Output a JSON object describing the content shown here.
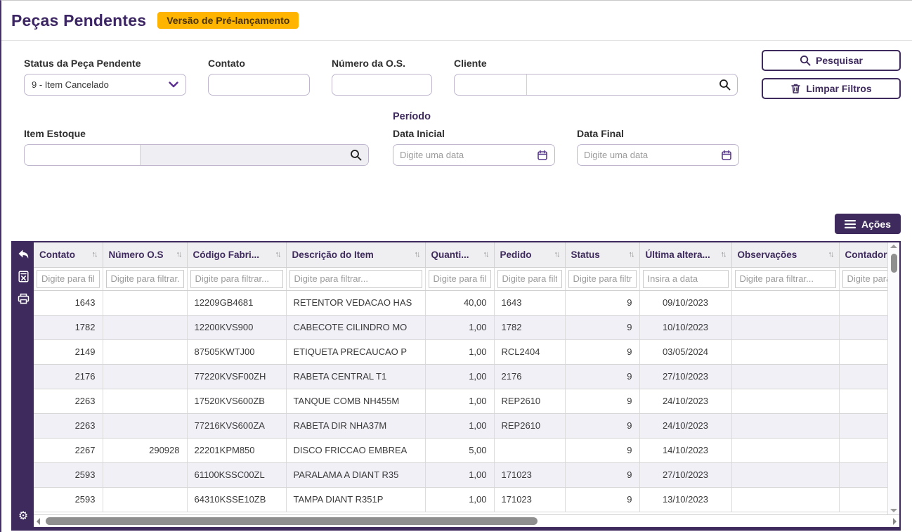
{
  "page": {
    "title": "Peças Pendentes",
    "badge": "Versão de Pré-lançamento"
  },
  "filters": {
    "status": {
      "label": "Status da Peça Pendente",
      "value": "9 - Item Cancelado"
    },
    "contato": {
      "label": "Contato",
      "value": ""
    },
    "numero_os": {
      "label": "Número da O.S.",
      "value": ""
    },
    "cliente": {
      "label": "Cliente",
      "code_value": "",
      "name_value": ""
    },
    "item_estoque": {
      "label": "Item Estoque",
      "code_value": "",
      "name_value": ""
    },
    "periodo": {
      "label": "Período"
    },
    "data_inicial": {
      "label": "Data Inicial",
      "placeholder": "Digite uma data"
    },
    "data_final": {
      "label": "Data Final",
      "placeholder": "Digite uma data"
    },
    "buttons": {
      "pesquisar": "Pesquisar",
      "limpar": "Limpar Filtros"
    }
  },
  "actions": {
    "label": "Ações"
  },
  "table": {
    "columns": [
      {
        "key": "contato",
        "label": "Contato",
        "filter_placeholder": "Digite para filtrar...",
        "width": 98,
        "align": "right",
        "sortable": true
      },
      {
        "key": "numero_os",
        "label": "Número O.S",
        "filter_placeholder": "Digite para filtrar...",
        "width": 120,
        "align": "right",
        "sortable": true
      },
      {
        "key": "codigo",
        "label": "Código Fabri...",
        "filter_placeholder": "Digite para filtrar...",
        "width": 141,
        "align": "left",
        "sortable": true
      },
      {
        "key": "descricao",
        "label": "Descrição do Item",
        "filter_placeholder": "Digite para filtrar...",
        "width": 198,
        "align": "left",
        "sortable": true
      },
      {
        "key": "quantidade",
        "label": "Quanti...",
        "filter_placeholder": "Digite para filtrar...",
        "width": 98,
        "align": "right",
        "sortable": true
      },
      {
        "key": "pedido",
        "label": "Pedido",
        "filter_placeholder": "Digite para filtrar...",
        "width": 101,
        "align": "left",
        "sortable": true
      },
      {
        "key": "status",
        "label": "Status",
        "filter_placeholder": "Digite para filtrar...",
        "width": 106,
        "align": "right",
        "sortable": true
      },
      {
        "key": "ultima",
        "label": "Última altera...",
        "filter_placeholder": "Insira a data",
        "width": 131,
        "align": "center",
        "sortable": true
      },
      {
        "key": "observacoes",
        "label": "Observações",
        "filter_placeholder": "Digite para filtrar...",
        "width": 153,
        "align": "left",
        "sortable": true
      },
      {
        "key": "contador",
        "label": "Contador",
        "filter_placeholder": "Digite para filtrar...",
        "width": 90,
        "align": "left",
        "sortable": false
      }
    ],
    "rows": [
      {
        "contato": "1643",
        "numero_os": "",
        "codigo": "12209GB4681",
        "descricao": "RETENTOR VEDACAO HAS",
        "quantidade": "40,00",
        "pedido": "1643",
        "status": "9",
        "ultima": "09/10/2023",
        "observacoes": "",
        "contador": ""
      },
      {
        "contato": "1782",
        "numero_os": "",
        "codigo": "12200KVS900",
        "descricao": "CABECOTE CILINDRO MO",
        "quantidade": "1,00",
        "pedido": "1782",
        "status": "9",
        "ultima": "10/10/2023",
        "observacoes": "",
        "contador": ""
      },
      {
        "contato": "2149",
        "numero_os": "",
        "codigo": "87505KWTJ00",
        "descricao": "ETIQUETA PRECAUCAO P",
        "quantidade": "1,00",
        "pedido": "RCL2404",
        "status": "9",
        "ultima": "03/05/2024",
        "observacoes": "",
        "contador": ""
      },
      {
        "contato": "2176",
        "numero_os": "",
        "codigo": "77220KVSF00ZH",
        "descricao": "RABETA CENTRAL T1",
        "quantidade": "1,00",
        "pedido": "2176",
        "status": "9",
        "ultima": "27/10/2023",
        "observacoes": "",
        "contador": ""
      },
      {
        "contato": "2263",
        "numero_os": "",
        "codigo": "17520KVS600ZB",
        "descricao": "TANQUE COMB NH455M",
        "quantidade": "1,00",
        "pedido": "REP2610",
        "status": "9",
        "ultima": "24/10/2023",
        "observacoes": "",
        "contador": ""
      },
      {
        "contato": "2263",
        "numero_os": "",
        "codigo": "77216KVS600ZA",
        "descricao": "RABETA DIR NHA37M",
        "quantidade": "1,00",
        "pedido": "REP2610",
        "status": "9",
        "ultima": "24/10/2023",
        "observacoes": "",
        "contador": ""
      },
      {
        "contato": "2267",
        "numero_os": "290928",
        "codigo": "22201KPM850",
        "descricao": "DISCO FRICCAO EMBREA",
        "quantidade": "5,00",
        "pedido": "",
        "status": "9",
        "ultima": "14/10/2023",
        "observacoes": "",
        "contador": ""
      },
      {
        "contato": "2593",
        "numero_os": "",
        "codigo": "61100KSSC00ZL",
        "descricao": "PARALAMA A DIANT R35",
        "quantidade": "1,00",
        "pedido": "171023",
        "status": "9",
        "ultima": "27/10/2023",
        "observacoes": "",
        "contador": ""
      },
      {
        "contato": "2593",
        "numero_os": "",
        "codigo": "64310KSSE10ZB",
        "descricao": "TAMPA DIANT R351P",
        "quantidade": "1,00",
        "pedido": "171023",
        "status": "9",
        "ultima": "13/10/2023",
        "observacoes": "",
        "contador": ""
      }
    ],
    "sort_icon": "↑↓"
  },
  "colors": {
    "primary_purple": "#3e2a5c",
    "title_purple": "#3c2563",
    "badge_bg": "#ffb400",
    "badge_text": "#4a3406",
    "header_bg": "#efeff1",
    "stripe_bg": "#f1f0f6",
    "accent_icon_purple": "#5a3a8e"
  }
}
